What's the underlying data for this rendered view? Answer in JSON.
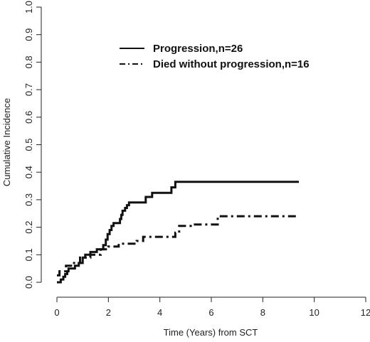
{
  "chart_data": {
    "type": "line",
    "title": "",
    "xlabel": "Time (Years) from SCT",
    "ylabel": "Cumulative Incidence",
    "xlim": [
      0,
      12
    ],
    "ylim": [
      0,
      1
    ],
    "x_ticks": [
      "0",
      "2",
      "4",
      "6",
      "8",
      "10",
      "12"
    ],
    "y_ticks": [
      "0.0",
      "0.1",
      "0.2",
      "0.3",
      "0.4",
      "0.5",
      "0.6",
      "0.7",
      "0.8",
      "0.9",
      "1.0"
    ],
    "grid": false,
    "legend_position": "top-center",
    "series": [
      {
        "name": "Progression,n=26",
        "style": "solid",
        "points": [
          [
            0.0,
            0.0
          ],
          [
            0.15,
            0.0
          ],
          [
            0.15,
            0.01
          ],
          [
            0.25,
            0.01
          ],
          [
            0.25,
            0.02
          ],
          [
            0.32,
            0.02
          ],
          [
            0.32,
            0.03
          ],
          [
            0.4,
            0.03
          ],
          [
            0.4,
            0.04
          ],
          [
            0.45,
            0.04
          ],
          [
            0.45,
            0.05
          ],
          [
            0.7,
            0.05
          ],
          [
            0.7,
            0.06
          ],
          [
            0.85,
            0.06
          ],
          [
            0.85,
            0.07
          ],
          [
            1.0,
            0.07
          ],
          [
            1.0,
            0.09
          ],
          [
            1.1,
            0.09
          ],
          [
            1.1,
            0.1
          ],
          [
            1.3,
            0.1
          ],
          [
            1.3,
            0.11
          ],
          [
            1.55,
            0.11
          ],
          [
            1.55,
            0.12
          ],
          [
            1.8,
            0.12
          ],
          [
            1.8,
            0.135
          ],
          [
            1.9,
            0.135
          ],
          [
            1.9,
            0.155
          ],
          [
            1.97,
            0.155
          ],
          [
            1.97,
            0.175
          ],
          [
            2.05,
            0.175
          ],
          [
            2.05,
            0.19
          ],
          [
            2.12,
            0.19
          ],
          [
            2.12,
            0.205
          ],
          [
            2.2,
            0.205
          ],
          [
            2.2,
            0.215
          ],
          [
            2.45,
            0.215
          ],
          [
            2.45,
            0.23
          ],
          [
            2.5,
            0.23
          ],
          [
            2.5,
            0.245
          ],
          [
            2.55,
            0.245
          ],
          [
            2.55,
            0.26
          ],
          [
            2.65,
            0.26
          ],
          [
            2.65,
            0.27
          ],
          [
            2.72,
            0.27
          ],
          [
            2.72,
            0.28
          ],
          [
            2.8,
            0.28
          ],
          [
            2.8,
            0.29
          ],
          [
            3.45,
            0.29
          ],
          [
            3.45,
            0.31
          ],
          [
            3.7,
            0.31
          ],
          [
            3.7,
            0.325
          ],
          [
            4.45,
            0.325
          ],
          [
            4.45,
            0.345
          ],
          [
            4.6,
            0.345
          ],
          [
            4.6,
            0.365
          ],
          [
            9.4,
            0.365
          ]
        ]
      },
      {
        "name": "Died without progression,n=16",
        "style": "dashdot",
        "points": [
          [
            0.0,
            0.025
          ],
          [
            0.1,
            0.025
          ],
          [
            0.1,
            0.04
          ],
          [
            0.35,
            0.04
          ],
          [
            0.35,
            0.06
          ],
          [
            0.55,
            0.06
          ],
          [
            0.55,
            0.07
          ],
          [
            0.9,
            0.07
          ],
          [
            0.9,
            0.09
          ],
          [
            1.3,
            0.09
          ],
          [
            1.3,
            0.1
          ],
          [
            1.7,
            0.1
          ],
          [
            1.7,
            0.12
          ],
          [
            2.0,
            0.12
          ],
          [
            2.0,
            0.13
          ],
          [
            2.4,
            0.13
          ],
          [
            2.4,
            0.14
          ],
          [
            3.1,
            0.14
          ],
          [
            3.1,
            0.15
          ],
          [
            3.35,
            0.15
          ],
          [
            3.35,
            0.165
          ],
          [
            4.6,
            0.165
          ],
          [
            4.6,
            0.18
          ],
          [
            4.75,
            0.18
          ],
          [
            4.75,
            0.205
          ],
          [
            5.2,
            0.205
          ],
          [
            5.2,
            0.21
          ],
          [
            6.25,
            0.21
          ],
          [
            6.25,
            0.24
          ],
          [
            9.4,
            0.24
          ]
        ]
      }
    ]
  }
}
